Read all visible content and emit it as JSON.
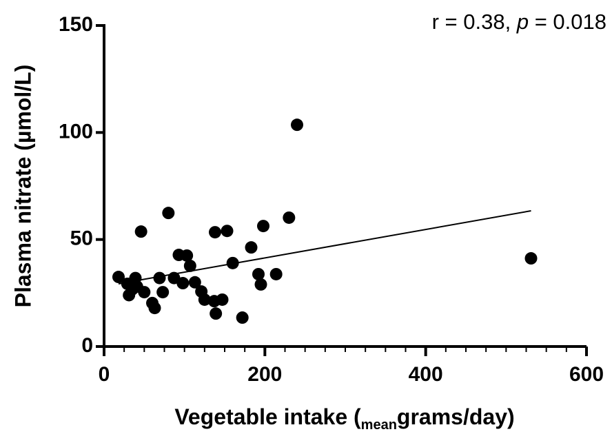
{
  "chart_data": {
    "type": "scatter",
    "annotation": [
      "r = 0.38, ",
      "p",
      " = 0.018"
    ],
    "x_label": [
      "Vegetable intake (",
      "mean",
      "grams/day)"
    ],
    "y_label": "Plasma nitrate (µmol/L)",
    "color": "#000000",
    "x": [
      18,
      29,
      31,
      35,
      39,
      41,
      46,
      50,
      60,
      63,
      69,
      73,
      80,
      87,
      93,
      98,
      103,
      107,
      113,
      121,
      125,
      137,
      138,
      139,
      147,
      153,
      160,
      172,
      183,
      192,
      195,
      198,
      214,
      230,
      240,
      531
    ],
    "y": [
      32.5,
      29.3,
      24,
      26.7,
      32,
      28,
      53.7,
      25.4,
      20.3,
      18,
      32,
      25.4,
      62.4,
      32,
      42.8,
      29.6,
      42.5,
      37.7,
      30,
      25.7,
      21.9,
      21.2,
      53.4,
      15.4,
      21.9,
      54,
      39,
      13.5,
      46.3,
      33.8,
      29,
      56.3,
      33.8,
      60.2,
      103.6,
      41.2
    ],
    "fit_line": {
      "x": [
        18,
        531
      ],
      "y": [
        29.3,
        63.4
      ]
    },
    "xlim": [
      0,
      600
    ],
    "ylim": [
      0,
      150
    ],
    "xticks": [
      0,
      200,
      400,
      600
    ],
    "xminorticks": [
      25,
      50,
      75,
      100,
      125,
      150,
      175,
      225,
      250,
      275,
      300,
      325,
      350,
      375,
      425,
      450,
      475,
      500,
      525,
      550,
      575
    ],
    "yticks": [
      0,
      50,
      100,
      150
    ]
  }
}
